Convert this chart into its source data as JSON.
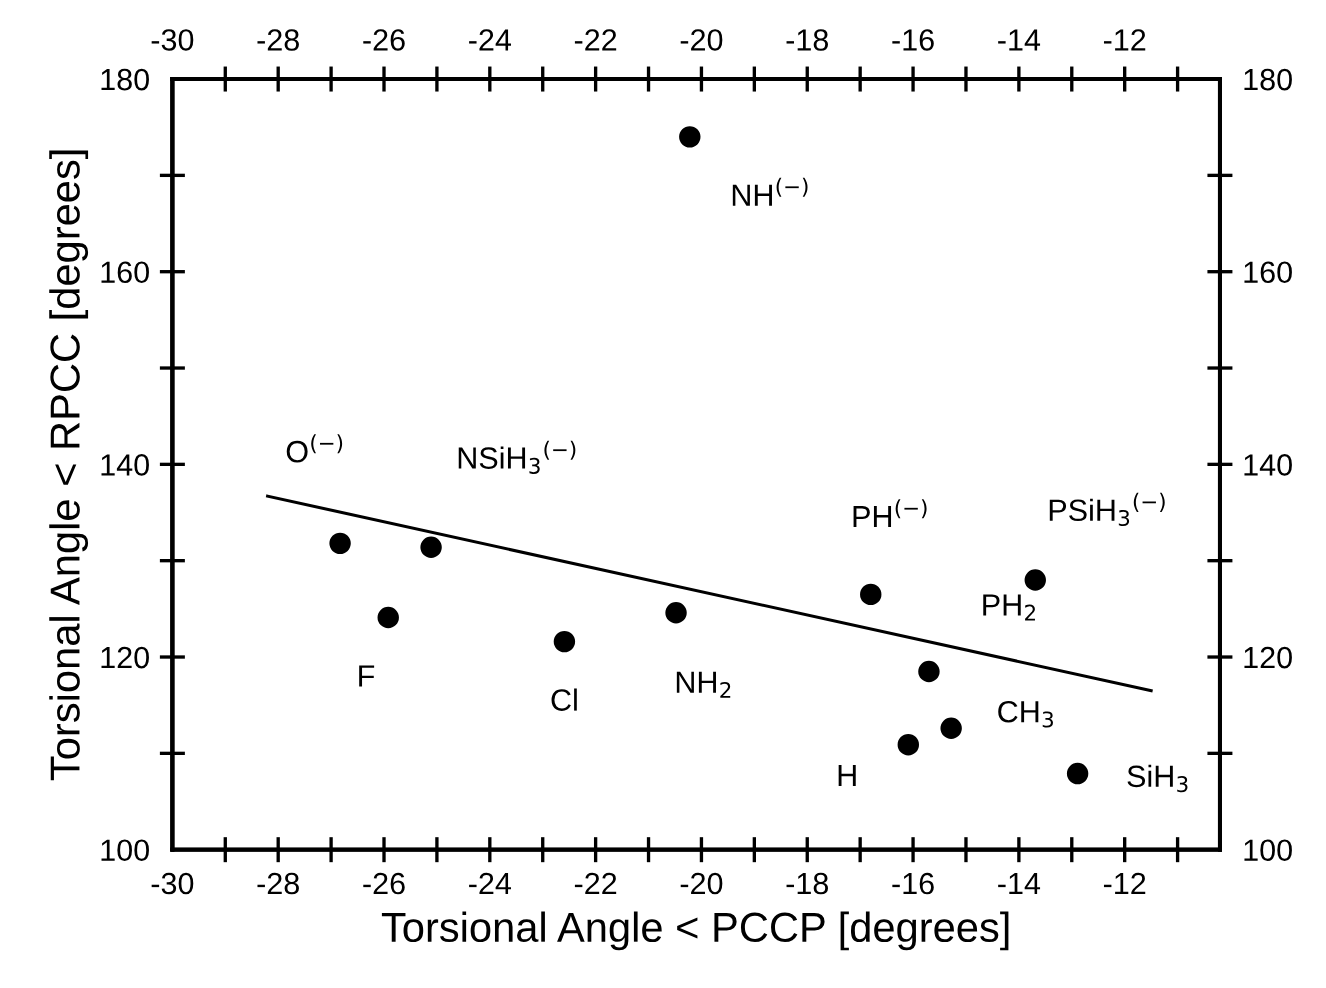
{
  "chart_data": {
    "type": "scatter",
    "xlabel": "Torsional Angle < PCCP [degrees]",
    "ylabel": "Torsional Angle < RPCC [degrees]",
    "x": [
      -26.83,
      -25.11,
      -25.92,
      -22.59,
      -20.48,
      -16.8,
      -13.69,
      -15.7,
      -15.28,
      -16.09,
      -12.89,
      -20.22
    ],
    "series": [
      {
        "color": "#000000",
        "marker": "circle",
        "values": [
          131.8,
          131.4,
          124.1,
          121.6,
          124.6,
          126.5,
          128.0,
          118.5,
          112.6,
          110.9,
          107.9,
          174.0
        ]
      },
      {
        "type": "line",
        "color": "#000000",
        "marker": "none",
        "line_style": "solid",
        "x": [
          -28.2,
          -11.5
        ],
        "values": [
          136.7,
          116.5
        ]
      }
    ],
    "annotations": [
      {
        "text": "O$^{(−)}$",
        "x": -26.83,
        "y": 131.8
      },
      {
        "text": "NSiH$_{3}$$^{(−)}$",
        "x": -25.11,
        "y": 131.4
      },
      {
        "text": "F",
        "x": -25.92,
        "y": 124.1
      },
      {
        "text": "Cl",
        "x": -22.59,
        "y": 121.6
      },
      {
        "text": "NH$_{2}$",
        "x": -20.48,
        "y": 124.6
      },
      {
        "text": "PH$^{(−)}$",
        "x": -16.8,
        "y": 126.5
      },
      {
        "text": "PSiH$_{3}$$^{(−)}$",
        "x": -13.69,
        "y": 128.0
      },
      {
        "text": "PH$_{2}$",
        "x": -15.7,
        "y": 118.5
      },
      {
        "text": "CH$_{3}$",
        "x": -15.28,
        "y": 112.6
      },
      {
        "text": "H",
        "x": -16.09,
        "y": 110.9
      },
      {
        "text": "SiH$_{3}$",
        "x": -12.89,
        "y": 107.9
      },
      {
        "text": "NH$^{(−)}$",
        "x": -20.22,
        "y": 174.0
      }
    ],
    "xlim": [
      -30,
      -10.2
    ],
    "ylim": [
      100,
      180
    ],
    "xticks": [
      -30,
      {
        "value": -29,
        "label": null
      },
      -28,
      {
        "value": -27,
        "label": null
      },
      -26,
      {
        "value": -25,
        "label": null
      },
      -24,
      {
        "value": -23,
        "label": null
      },
      -22,
      {
        "value": -21,
        "label": null
      },
      -20,
      {
        "value": -19,
        "label": null
      },
      -18,
      {
        "value": -17,
        "label": null
      },
      -16,
      {
        "value": -15,
        "label": null
      },
      -14,
      {
        "value": -13,
        "label": null
      },
      -12,
      {
        "value": -11,
        "label": null
      }
    ],
    "x2lim": [
      -30,
      -10.2
    ],
    "x2ticks": [
      -30,
      {
        "value": -29,
        "label": null
      },
      -28,
      {
        "value": -27,
        "label": null
      },
      -26,
      {
        "value": -25,
        "label": null
      },
      -24,
      {
        "value": -23,
        "label": null
      },
      -22,
      {
        "value": -21,
        "label": null
      },
      -20,
      {
        "value": -19,
        "label": null
      },
      -18,
      {
        "value": -17,
        "label": null
      },
      -16,
      {
        "value": -15,
        "label": null
      },
      -14,
      {
        "value": -13,
        "label": null
      },
      -12,
      {
        "value": -11,
        "label": null
      }
    ],
    "yticks": [
      100,
      {
        "value": 110,
        "label": null
      },
      120,
      {
        "value": 130,
        "label": null
      },
      140,
      {
        "value": 150,
        "label": null
      },
      160,
      {
        "value": 170,
        "label": null
      },
      180
    ],
    "y2lim": [
      100,
      180
    ],
    "y2ticks": [
      100,
      {
        "value": 110,
        "label": null
      },
      120,
      {
        "value": 130,
        "label": null
      },
      140,
      {
        "value": 150,
        "label": null
      },
      160,
      {
        "value": 170,
        "label": null
      },
      180
    ],
    "grid": false,
    "legend": false
  }
}
